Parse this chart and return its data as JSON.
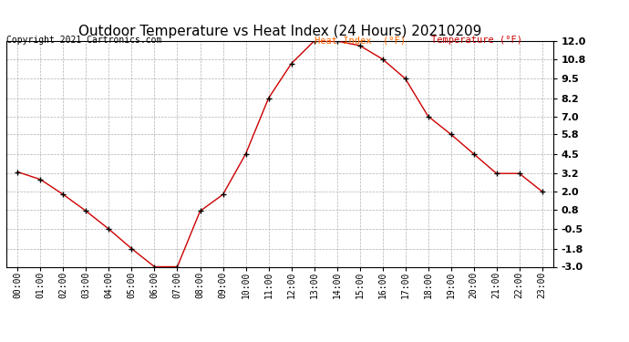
{
  "title": "Outdoor Temperature vs Heat Index (24 Hours) 20210209",
  "copyright": "Copyright 2021 Cartronics.com",
  "legend_heat_index": "Heat Index  (°F)",
  "legend_temperature": "Temperature (°F)",
  "x_labels": [
    "00:00",
    "01:00",
    "02:00",
    "03:00",
    "04:00",
    "05:00",
    "06:00",
    "07:00",
    "08:00",
    "09:00",
    "10:00",
    "11:00",
    "12:00",
    "13:00",
    "14:00",
    "15:00",
    "16:00",
    "17:00",
    "18:00",
    "19:00",
    "20:00",
    "21:00",
    "22:00",
    "23:00"
  ],
  "temperature": [
    3.3,
    2.8,
    1.8,
    0.7,
    -0.5,
    -1.8,
    -3.0,
    -3.0,
    0.7,
    1.8,
    4.5,
    8.2,
    10.5,
    12.0,
    12.0,
    11.7,
    10.8,
    9.5,
    7.0,
    5.8,
    4.5,
    3.2,
    3.2,
    2.0
  ],
  "heat_index": [
    3.3,
    2.8,
    1.8,
    0.7,
    -0.5,
    -1.8,
    -3.0,
    -3.0,
    0.7,
    1.8,
    4.5,
    8.2,
    10.5,
    12.0,
    12.0,
    11.7,
    10.8,
    9.5,
    7.0,
    5.8,
    4.5,
    3.2,
    3.2,
    2.0
  ],
  "ylim": [
    -3.0,
    12.0
  ],
  "yticks": [
    12.0,
    10.8,
    9.5,
    8.2,
    7.0,
    5.8,
    4.5,
    3.2,
    2.0,
    0.8,
    -0.5,
    -1.8,
    -3.0
  ],
  "line_color": "#cc0000",
  "marker_color": "#000000",
  "background_color": "#ffffff",
  "grid_color": "#b0b0b0",
  "title_fontsize": 11,
  "copyright_fontsize": 7,
  "copyright_color": "#000000",
  "legend_color_heat": "#ff6600",
  "legend_color_temp": "#cc0000",
  "tick_fontsize": 7,
  "ytick_fontsize": 8
}
